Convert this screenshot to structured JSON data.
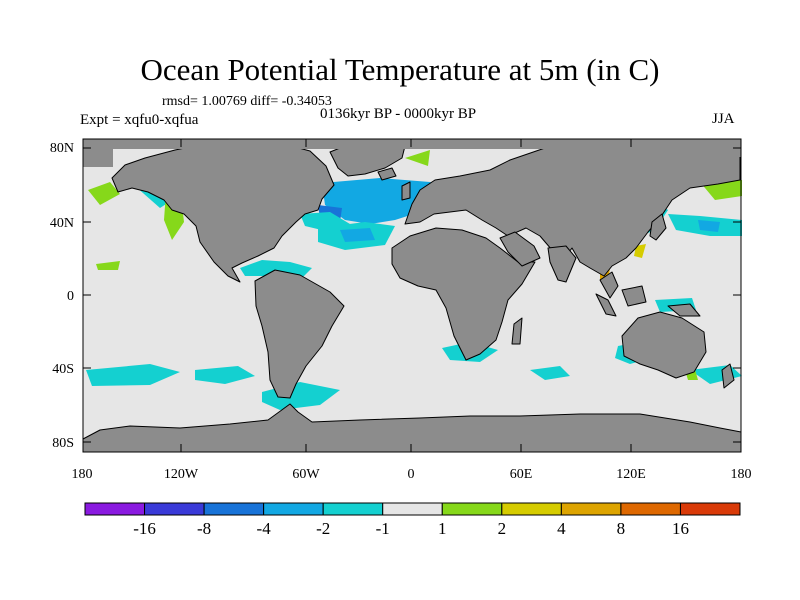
{
  "title": "Ocean Potential Temperature at 5m (in C)",
  "stats": "rmsd= 1.00769 diff= -0.34053",
  "experiment": "Expt = xqfu0-xqfua",
  "period": "0136kyr BP - 0000kyr BP",
  "season": "JJA",
  "lat_ticks": [
    "80N",
    "40N",
    "0",
    "40S",
    "80S"
  ],
  "lon_ticks": [
    "180",
    "120W",
    "60W",
    "0",
    "60E",
    "120E",
    "180"
  ],
  "colorbar": {
    "colors": [
      "#8a1ae0",
      "#3a3ad8",
      "#1873d8",
      "#12a8e3",
      "#14d0d0",
      "#e6e6e6",
      "#86d81a",
      "#d6cc00",
      "#dda400",
      "#de6800",
      "#d93a08"
    ],
    "labels": [
      "-16",
      "-8",
      "-4",
      "-2",
      "-1",
      "1",
      "2",
      "4",
      "8",
      "16"
    ]
  },
  "map_colors": {
    "ocean": "#e6e6e6",
    "land": "#8c8c8c",
    "coast": "#000000"
  }
}
